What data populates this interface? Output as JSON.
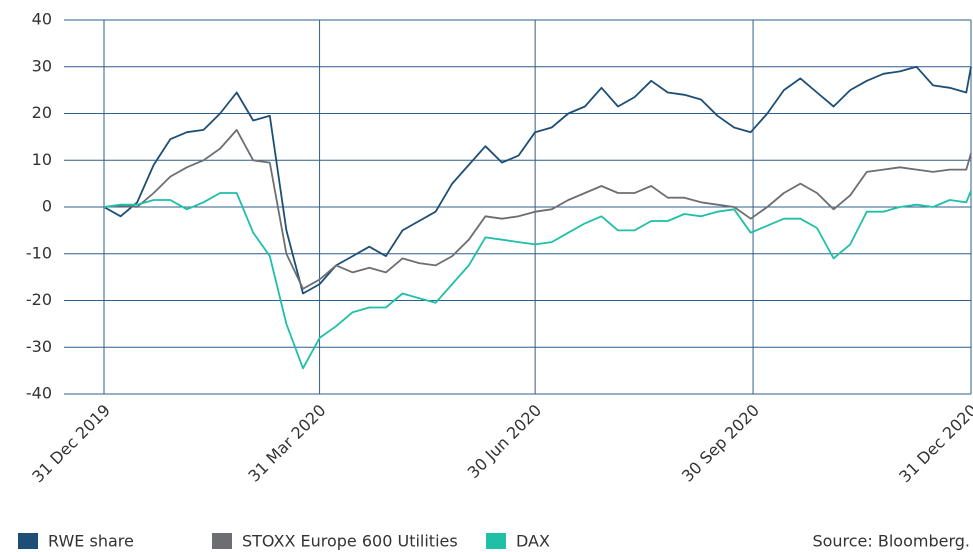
{
  "chart_data": {
    "type": "line",
    "source": "Source: Bloomberg.",
    "x": [
      0,
      7,
      14,
      21,
      28,
      35,
      42,
      49,
      56,
      63,
      70,
      77,
      84,
      91,
      98,
      105,
      112,
      119,
      126,
      133,
      140,
      147,
      154,
      161,
      168,
      175,
      182,
      189,
      196,
      203,
      210,
      217,
      224,
      231,
      238,
      245,
      252,
      259,
      266,
      273,
      280,
      287,
      294,
      301,
      308,
      315,
      322,
      329,
      336,
      343,
      350,
      357,
      364,
      366
    ],
    "xlim": [
      0,
      366
    ],
    "xticks": [
      {
        "value": 0,
        "label": "31 Dec 2019"
      },
      {
        "value": 91,
        "label": "31 Mar 2020"
      },
      {
        "value": 182,
        "label": "30 Jun 2020"
      },
      {
        "value": 274,
        "label": "30 Sep 2020"
      },
      {
        "value": 366,
        "label": "31 Dec 2020"
      }
    ],
    "ylim": [
      -40,
      40
    ],
    "yticks": [
      -40,
      -30,
      -20,
      -10,
      0,
      10,
      20,
      30,
      40
    ],
    "grid": true,
    "legend": "bottom-left",
    "series": [
      {
        "name": "RWE share",
        "color": "#1d4f76",
        "values": [
          0,
          -2,
          1,
          9,
          14.5,
          16,
          16.5,
          20,
          24.5,
          18.5,
          19.5,
          -5,
          -18.5,
          -16.5,
          -12.5,
          -10.5,
          -8.5,
          -10.5,
          -5,
          -3,
          -1,
          5,
          9,
          13,
          9.5,
          11,
          16,
          17,
          20,
          21.5,
          25.5,
          21.5,
          23.5,
          27,
          24.5,
          24,
          23,
          19.5,
          17,
          16,
          20,
          25,
          27.5,
          24.5,
          21.5,
          25,
          27,
          28.5,
          29,
          30,
          26,
          25.5,
          24.5,
          30
        ]
      },
      {
        "name": "STOXX Europe 600 Utilities",
        "color": "#6d6e71",
        "values": [
          0,
          0.3,
          0,
          3,
          6.5,
          8.5,
          10,
          12.5,
          16.5,
          10,
          9.5,
          -10,
          -17.5,
          -15.5,
          -12.5,
          -14,
          -13,
          -14,
          -11,
          -12,
          -12.5,
          -10.5,
          -7,
          -2,
          -2.5,
          -2,
          -1,
          -0.5,
          1.5,
          3,
          4.5,
          3,
          3,
          4.5,
          2,
          2,
          1,
          0.5,
          0,
          -2.5,
          0,
          3,
          5,
          3,
          -0.5,
          2.5,
          7.5,
          8,
          8.5,
          8,
          7.5,
          8,
          8,
          11.5
        ]
      },
      {
        "name": "DAX",
        "color": "#1fbfa8",
        "values": [
          0,
          0.5,
          0.5,
          1.5,
          1.5,
          -0.5,
          1,
          3,
          3,
          -5.5,
          -10.5,
          -25,
          -34.5,
          -28,
          -25.5,
          -22.5,
          -21.5,
          -21.5,
          -18.5,
          -19.5,
          -20.5,
          -16.5,
          -12.5,
          -6.5,
          -7,
          -7.5,
          -8,
          -7.5,
          -5.5,
          -3.5,
          -2,
          -5,
          -5,
          -3,
          -3,
          -1.5,
          -2,
          -1,
          -0.5,
          -5.5,
          -4,
          -2.5,
          -2.5,
          -4.5,
          -11,
          -8,
          -1,
          -1,
          0,
          0.5,
          0,
          1.5,
          1,
          3.5
        ]
      }
    ]
  }
}
